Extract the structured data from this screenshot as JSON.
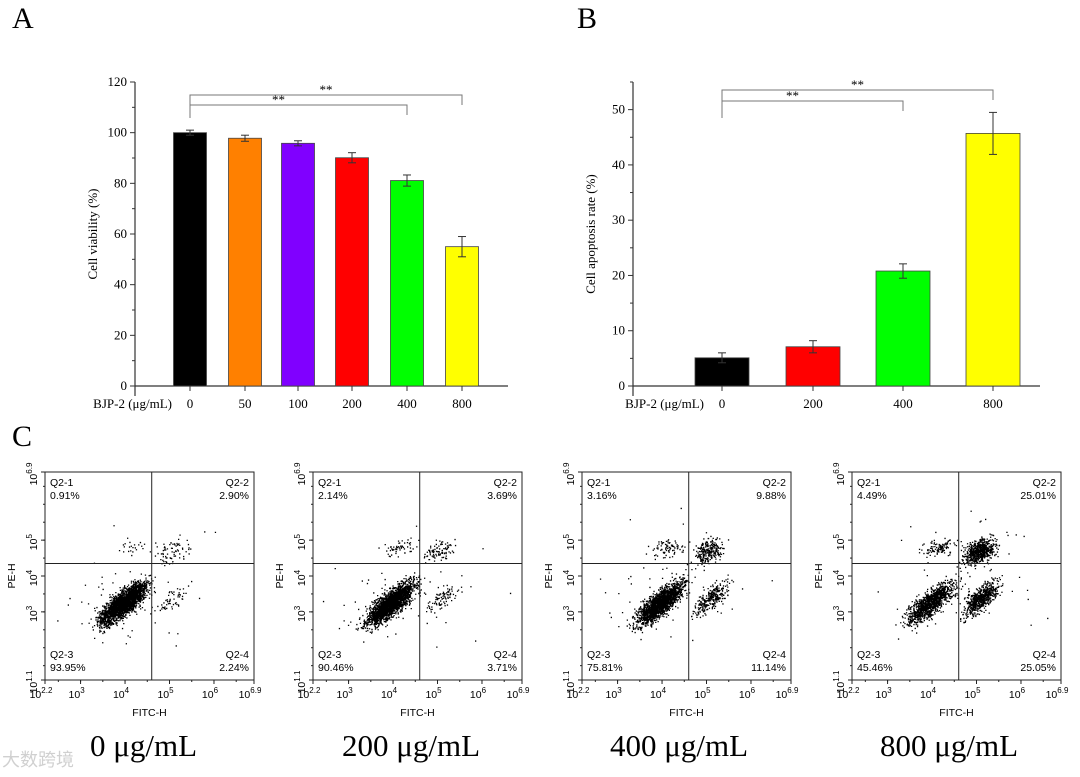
{
  "panel_labels": [
    "A",
    "B",
    "C"
  ],
  "watermark": "大数跨境",
  "chart_data": [
    {
      "type": "bar",
      "panel": "A",
      "ylabel": "Cell viability (%)",
      "xlabel": "BJP-2 (μg/mL)",
      "categories": [
        "0",
        "50",
        "100",
        "200",
        "400",
        "800"
      ],
      "values": [
        100,
        97.8,
        95.8,
        90.1,
        81.1,
        55.0
      ],
      "errors": [
        1.0,
        1.2,
        1.0,
        2.0,
        2.2,
        4.0
      ],
      "colors": [
        "#000000",
        "#ff8000",
        "#8000ff",
        "#ff0000",
        "#00ff00",
        "#ffff00"
      ],
      "ylim": [
        0,
        120
      ],
      "yticks": [
        0,
        20,
        40,
        60,
        80,
        100,
        120
      ],
      "significance": [
        {
          "from": "0",
          "to": "400",
          "label": "**"
        },
        {
          "from": "0",
          "to": "800",
          "label": "**"
        }
      ]
    },
    {
      "type": "bar",
      "panel": "B",
      "ylabel": "Cell apoptosis rate (%)",
      "xlabel": "BJP-2 (μg/mL)",
      "categories": [
        "0",
        "200",
        "400",
        "800"
      ],
      "values": [
        5.1,
        7.1,
        20.8,
        45.7
      ],
      "errors": [
        0.9,
        1.1,
        1.3,
        3.8
      ],
      "colors": [
        "#000000",
        "#ff0000",
        "#00ff00",
        "#ffff00"
      ],
      "ylim": [
        0,
        55
      ],
      "yticks": [
        0,
        10,
        20,
        30,
        40,
        50
      ],
      "significance": [
        {
          "from": "0",
          "to": "400",
          "label": "**"
        },
        {
          "from": "0",
          "to": "800",
          "label": "**"
        }
      ]
    },
    {
      "type": "scatter",
      "panel": "C",
      "xlabel": "FITC-H",
      "ylabel": "PE-H",
      "xlim_log10": [
        2.2,
        6.9
      ],
      "ylim_log10": [
        1.1,
        6.9
      ],
      "xticks": [
        "2.2",
        "3",
        "4",
        "5",
        "6",
        "6.9"
      ],
      "yticks": [
        "1.1",
        "3",
        "4",
        "5",
        "6.9"
      ],
      "gate_log10": {
        "x": 4.6,
        "y": 4.35
      },
      "plots": [
        {
          "caption": "0 μg/mL",
          "quadrants": [
            {
              "name": "Q2-1",
              "value": "0.91%"
            },
            {
              "name": "Q2-2",
              "value": "2.90%"
            },
            {
              "name": "Q2-3",
              "value": "93.95%"
            },
            {
              "name": "Q2-4",
              "value": "2.24%"
            }
          ]
        },
        {
          "caption": "200 μg/mL",
          "quadrants": [
            {
              "name": "Q2-1",
              "value": "2.14%"
            },
            {
              "name": "Q2-2",
              "value": "3.69%"
            },
            {
              "name": "Q2-3",
              "value": "90.46%"
            },
            {
              "name": "Q2-4",
              "value": "3.71%"
            }
          ]
        },
        {
          "caption": "400 μg/mL",
          "quadrants": [
            {
              "name": "Q2-1",
              "value": "3.16%"
            },
            {
              "name": "Q2-2",
              "value": "9.88%"
            },
            {
              "name": "Q2-3",
              "value": "75.81%"
            },
            {
              "name": "Q2-4",
              "value": "11.14%"
            }
          ]
        },
        {
          "caption": "800 μg/mL",
          "quadrants": [
            {
              "name": "Q2-1",
              "value": "4.49%"
            },
            {
              "name": "Q2-2",
              "value": "25.01%"
            },
            {
              "name": "Q2-3",
              "value": "45.46%"
            },
            {
              "name": "Q2-4",
              "value": "25.05%"
            }
          ]
        }
      ]
    }
  ]
}
